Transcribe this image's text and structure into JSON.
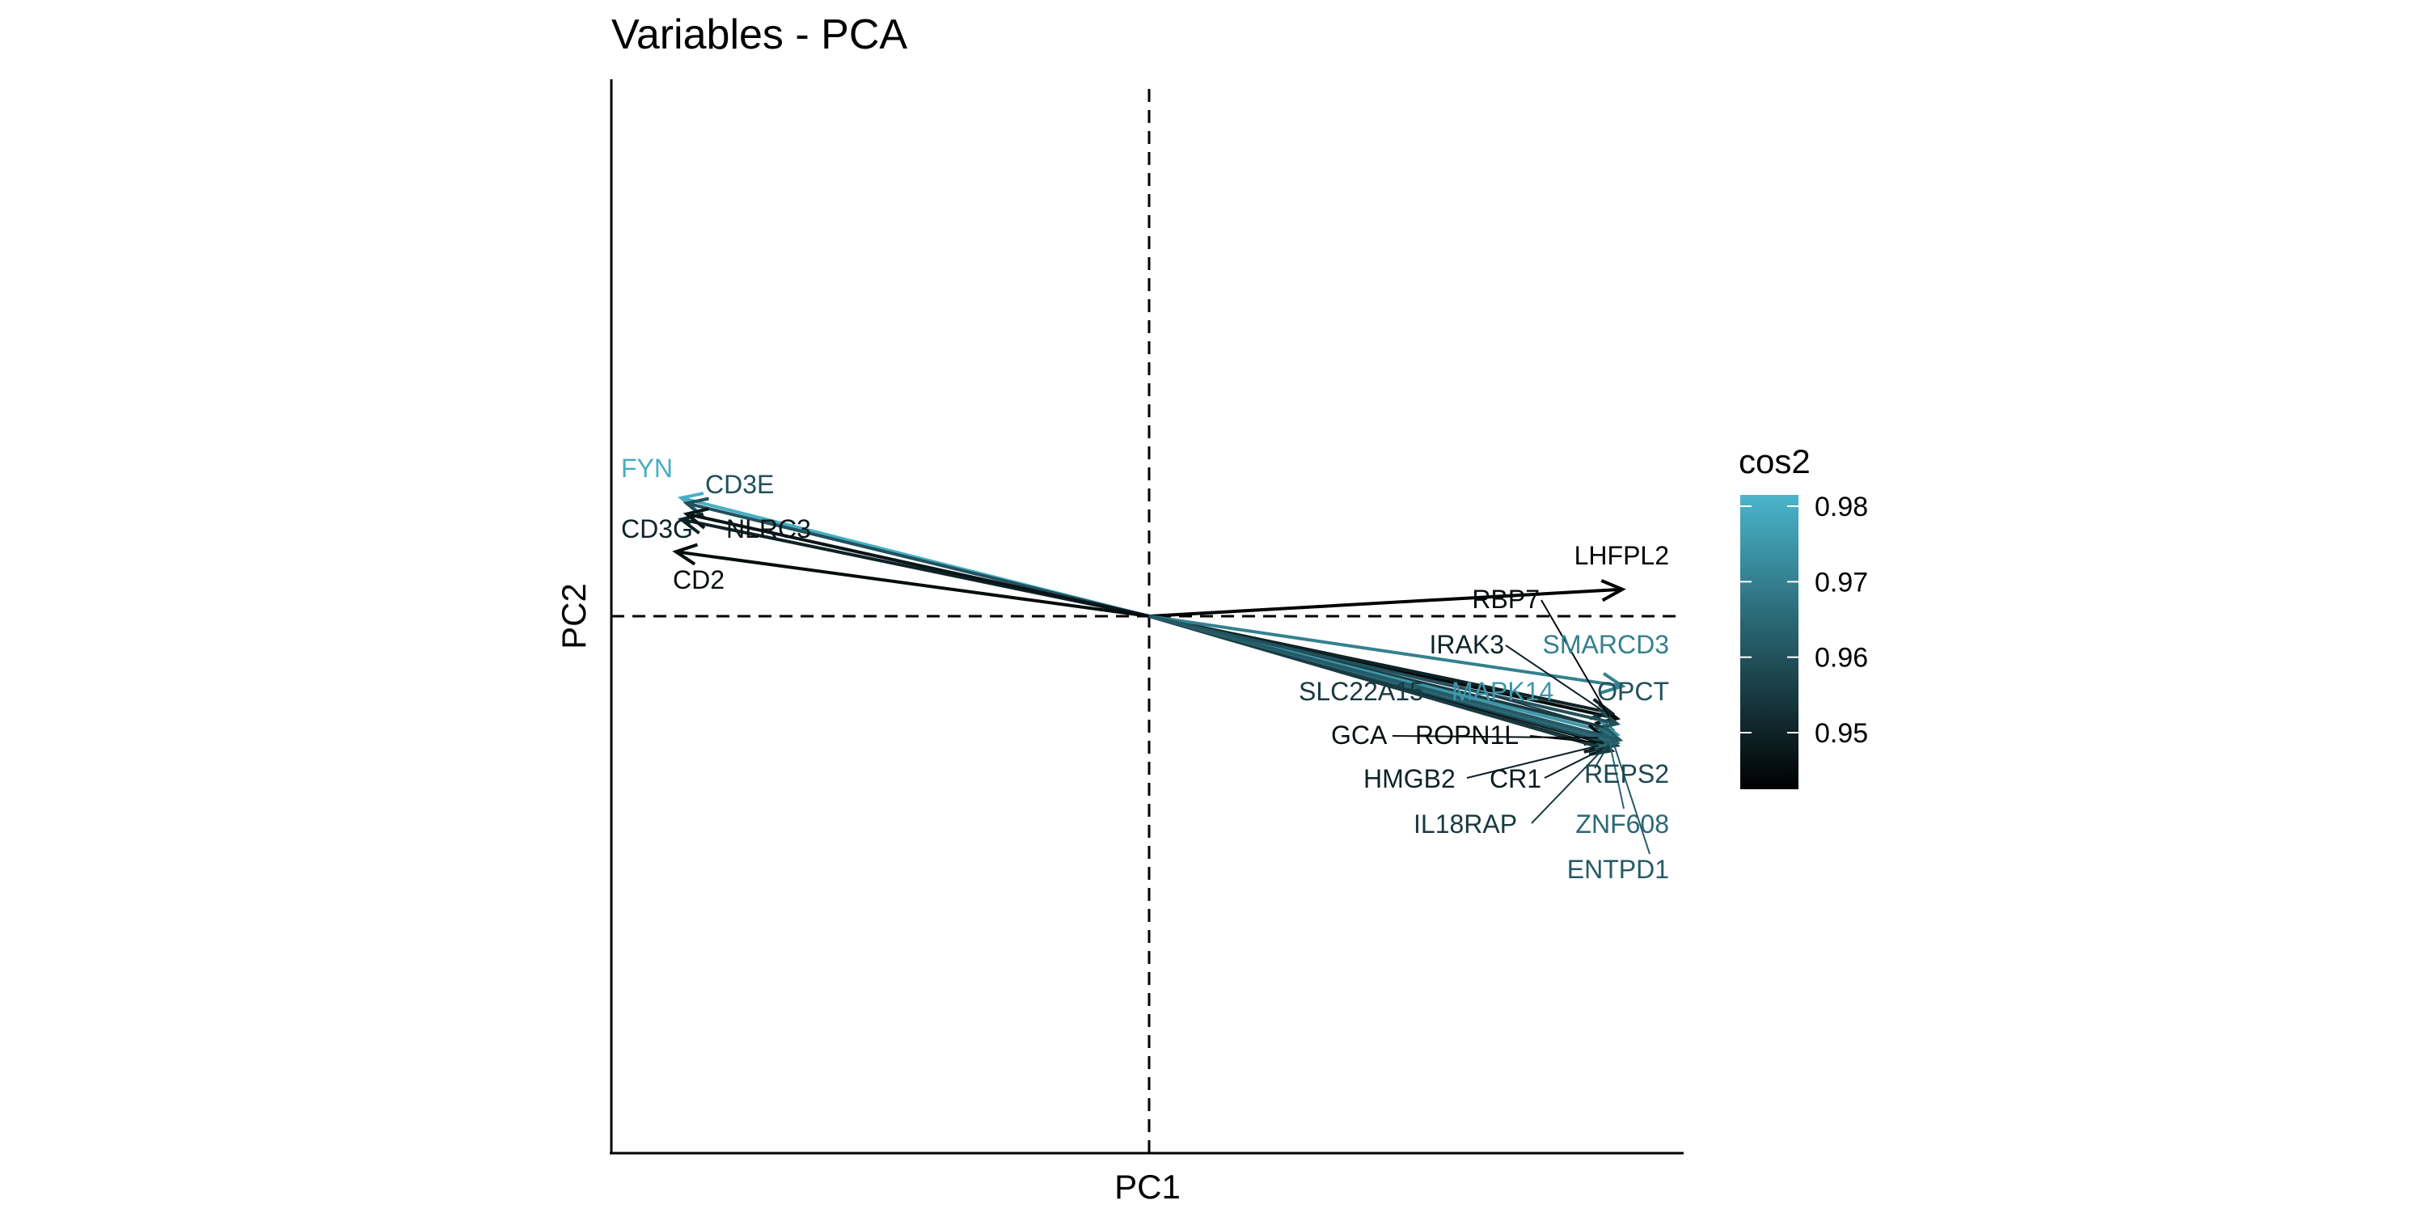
{
  "chart_data": {
    "type": "biplot",
    "title": "Variables - PCA",
    "xlabel": "PC1",
    "ylabel": "PC2",
    "xlim": [
      -1.0,
      1.0
    ],
    "ylim": [
      -1.0,
      1.0
    ],
    "reference_lines": {
      "x": 0,
      "y": 0,
      "style": "dashed"
    },
    "legend": {
      "title": "cos2",
      "position": "right",
      "ticks": [
        0.95,
        0.96,
        0.97,
        0.98
      ],
      "range": [
        0.9425,
        0.9815
      ],
      "color_low": "#000000",
      "color_high": "#4ab5cc"
    },
    "variables": [
      {
        "name": "FYN",
        "x": -0.87,
        "y": 0.22,
        "cos2": 0.98
      },
      {
        "name": "CD3E",
        "x": -0.86,
        "y": 0.21,
        "cos2": 0.96
      },
      {
        "name": "CD3G",
        "x": -0.87,
        "y": 0.18,
        "cos2": 0.95
      },
      {
        "name": "NLRC3",
        "x": -0.86,
        "y": 0.19,
        "cos2": 0.947
      },
      {
        "name": "CD2",
        "x": -0.88,
        "y": 0.12,
        "cos2": 0.945
      },
      {
        "name": "LHFPL2",
        "x": 0.88,
        "y": 0.05,
        "cos2": 0.943
      },
      {
        "name": "RBP7",
        "x": 0.87,
        "y": -0.19,
        "cos2": 0.945
      },
      {
        "name": "IRAK3",
        "x": 0.86,
        "y": -0.18,
        "cos2": 0.95
      },
      {
        "name": "SMARCD3",
        "x": 0.88,
        "y": -0.13,
        "cos2": 0.97
      },
      {
        "name": "SLC22A15",
        "x": 0.86,
        "y": -0.21,
        "cos2": 0.955
      },
      {
        "name": "MAPK14",
        "x": 0.87,
        "y": -0.22,
        "cos2": 0.975
      },
      {
        "name": "OPCT",
        "x": 0.87,
        "y": -0.2,
        "cos2": 0.96
      },
      {
        "name": "GCA",
        "x": 0.85,
        "y": -0.23,
        "cos2": 0.946
      },
      {
        "name": "ROPN1L",
        "x": 0.86,
        "y": -0.24,
        "cos2": 0.945
      },
      {
        "name": "HMGB2",
        "x": 0.85,
        "y": -0.245,
        "cos2": 0.95
      },
      {
        "name": "CR1",
        "x": 0.86,
        "y": -0.25,
        "cos2": 0.948
      },
      {
        "name": "REPS2",
        "x": 0.87,
        "y": -0.24,
        "cos2": 0.958
      },
      {
        "name": "IL18RAP",
        "x": 0.86,
        "y": -0.25,
        "cos2": 0.955
      },
      {
        "name": "ZNF608",
        "x": 0.87,
        "y": -0.235,
        "cos2": 0.965
      },
      {
        "name": "ENTPD1",
        "x": 0.875,
        "y": -0.23,
        "cos2": 0.962
      }
    ]
  }
}
